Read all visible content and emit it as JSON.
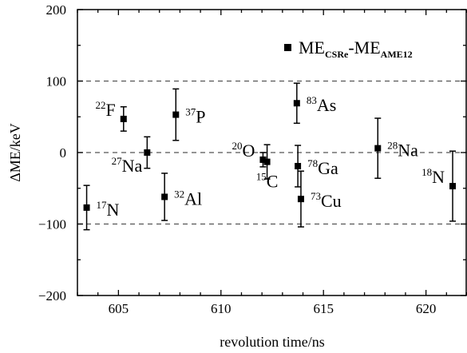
{
  "chart_data": {
    "type": "scatter",
    "xlabel": "revolution time/ns",
    "ylabel": "ΔME/keV",
    "xlim": [
      603.0,
      622.0
    ],
    "ylim": [
      -200,
      200
    ],
    "x_ticks": [
      605,
      610,
      615,
      620
    ],
    "y_ticks": [
      -200,
      -100,
      0,
      100,
      200
    ],
    "reference_lines": [
      -100,
      0,
      100
    ],
    "grid": false,
    "legend": {
      "placement": "top-right",
      "marker": "square",
      "text": "ME",
      "sub1": "CSRe",
      "mid": "-ME",
      "sub2": "AME12"
    },
    "points": [
      {
        "x": 603.45,
        "y": -77,
        "err": 31,
        "sup": "17",
        "el": "N",
        "label_pos": "right"
      },
      {
        "x": 605.25,
        "y": 47,
        "err": 17,
        "sup": "22",
        "el": "F",
        "label_pos": "left"
      },
      {
        "x": 606.4,
        "y": 0,
        "err": 22,
        "sup": "27",
        "el": "Na",
        "label_pos": "below-left"
      },
      {
        "x": 607.25,
        "y": -62,
        "err": 33,
        "sup": "32",
        "el": "Al",
        "label_pos": "right"
      },
      {
        "x": 607.8,
        "y": 53,
        "err": 36,
        "sup": "37",
        "el": "P",
        "label_pos": "right"
      },
      {
        "x": 612.05,
        "y": -10,
        "err": 10,
        "sup": "20",
        "el": "O",
        "label_pos": "left"
      },
      {
        "x": 612.25,
        "y": -13,
        "err": 24,
        "sup": "15",
        "el": "C",
        "label_pos": "below"
      },
      {
        "x": 613.7,
        "y": 69,
        "err": 28,
        "sup": "83",
        "el": "As",
        "label_pos": "right"
      },
      {
        "x": 613.75,
        "y": -19,
        "err": 29,
        "sup": "78",
        "el": "Ga",
        "label_pos": "right"
      },
      {
        "x": 613.9,
        "y": -65,
        "err": 39,
        "sup": "73",
        "el": "Cu",
        "label_pos": "right"
      },
      {
        "x": 617.65,
        "y": 6,
        "err": 42,
        "sup": "28",
        "el": "Na",
        "label_pos": "right"
      },
      {
        "x": 621.3,
        "y": -47,
        "err": 49,
        "sup": "18",
        "el": "N",
        "label_pos": "left"
      }
    ]
  }
}
